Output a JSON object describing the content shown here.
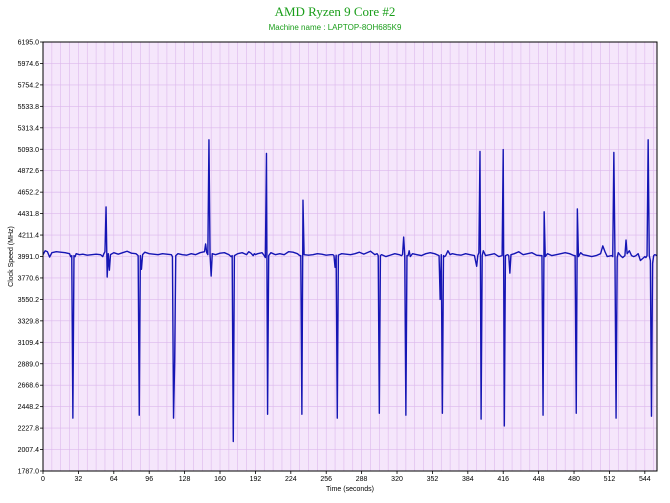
{
  "chart_data": {
    "type": "line",
    "title": "AMD Ryzen 9 Core #2",
    "subtitle": "Machine name : LAPTOP-8OH685K9",
    "xlabel": "Time (seconds)",
    "ylabel": "Clock Speed (MHz)",
    "xlim": [
      0,
      555
    ],
    "ylim": [
      1787.0,
      6195.0
    ],
    "x_ticks": [
      0,
      32,
      64,
      96,
      128,
      160,
      192,
      224,
      256,
      288,
      320,
      352,
      384,
      416,
      448,
      480,
      512,
      544
    ],
    "y_ticks": [
      "1787.0",
      "2007.4",
      "2227.8",
      "2448.2",
      "2668.6",
      "2889.0",
      "3109.4",
      "3329.8",
      "3550.2",
      "3770.6",
      "3991.0",
      "4211.4",
      "4431.8",
      "4652.2",
      "4872.6",
      "5093.0",
      "5313.4",
      "5533.8",
      "5754.2",
      "5974.6",
      "6195.0"
    ],
    "grid": true,
    "background": "#f5e6fb",
    "grid_color": "#dcb8ec",
    "line_color": "#1515b4",
    "baseline": 4005,
    "series": [
      {
        "points": [
          [
            0,
            4010
          ],
          [
            2,
            4050
          ],
          [
            4,
            4040
          ],
          [
            6,
            3985
          ],
          [
            8,
            4030
          ],
          [
            12,
            4040
          ],
          [
            16,
            4035
          ],
          [
            20,
            4030
          ],
          [
            24,
            4020
          ],
          [
            25,
            3990
          ],
          [
            26,
            4000
          ],
          [
            27,
            2330
          ],
          [
            28,
            4000
          ],
          [
            29,
            3990
          ],
          [
            30,
            4020
          ],
          [
            33,
            4010
          ],
          [
            36,
            4015
          ],
          [
            40,
            4005
          ],
          [
            44,
            4010
          ],
          [
            48,
            4015
          ],
          [
            52,
            4010
          ],
          [
            54,
            3990
          ],
          [
            55,
            4020
          ],
          [
            56,
            4040
          ],
          [
            57,
            4500
          ],
          [
            58,
            3780
          ],
          [
            59,
            4020
          ],
          [
            60,
            3850
          ],
          [
            61,
            4010
          ],
          [
            64,
            4030
          ],
          [
            68,
            4015
          ],
          [
            72,
            4030
          ],
          [
            76,
            4045
          ],
          [
            80,
            4025
          ],
          [
            84,
            4020
          ],
          [
            86,
            4000
          ],
          [
            87,
            2360
          ],
          [
            88,
            4000
          ],
          [
            89,
            3860
          ],
          [
            90,
            4010
          ],
          [
            92,
            4035
          ],
          [
            96,
            4020
          ],
          [
            100,
            4015
          ],
          [
            104,
            4010
          ],
          [
            108,
            4020
          ],
          [
            112,
            4015
          ],
          [
            116,
            4010
          ],
          [
            117,
            3990
          ],
          [
            118,
            2330
          ],
          [
            119,
            2900
          ],
          [
            120,
            4000
          ],
          [
            122,
            4020
          ],
          [
            126,
            4010
          ],
          [
            130,
            4005
          ],
          [
            134,
            4020
          ],
          [
            138,
            4010
          ],
          [
            142,
            4030
          ],
          [
            146,
            4040
          ],
          [
            147,
            4120
          ],
          [
            148,
            4030
          ],
          [
            149,
            4010
          ],
          [
            150,
            5190
          ],
          [
            151,
            4010
          ],
          [
            152,
            3790
          ],
          [
            153,
            4020
          ],
          [
            156,
            4010
          ],
          [
            160,
            4025
          ],
          [
            164,
            4030
          ],
          [
            168,
            4010
          ],
          [
            170,
            3990
          ],
          [
            171,
            4000
          ],
          [
            172,
            2090
          ],
          [
            173,
            4000
          ],
          [
            176,
            4020
          ],
          [
            180,
            4030
          ],
          [
            184,
            4010
          ],
          [
            186,
            4040
          ],
          [
            188,
            4025
          ],
          [
            190,
            4000
          ],
          [
            191,
            4020
          ],
          [
            192,
            4010
          ],
          [
            194,
            4020
          ],
          [
            198,
            4030
          ],
          [
            200,
            4000
          ],
          [
            201,
            3980
          ],
          [
            202,
            5050
          ],
          [
            203,
            2370
          ],
          [
            204,
            4000
          ],
          [
            206,
            4030
          ],
          [
            210,
            4010
          ],
          [
            214,
            4020
          ],
          [
            218,
            4010
          ],
          [
            222,
            4040
          ],
          [
            226,
            4035
          ],
          [
            230,
            4020
          ],
          [
            232,
            4000
          ],
          [
            233,
            4000
          ],
          [
            234,
            2370
          ],
          [
            235,
            4570
          ],
          [
            236,
            4010
          ],
          [
            240,
            4005
          ],
          [
            244,
            4010
          ],
          [
            248,
            4020
          ],
          [
            252,
            4015
          ],
          [
            256,
            4005
          ],
          [
            260,
            4010
          ],
          [
            262,
            4010
          ],
          [
            263,
            4000
          ],
          [
            264,
            3880
          ],
          [
            265,
            4005
          ],
          [
            266,
            2330
          ],
          [
            267,
            4005
          ],
          [
            268,
            4010
          ],
          [
            270,
            4020
          ],
          [
            274,
            4015
          ],
          [
            278,
            4010
          ],
          [
            282,
            4020
          ],
          [
            286,
            4035
          ],
          [
            290,
            4015
          ],
          [
            296,
            4045
          ],
          [
            300,
            4010
          ],
          [
            302,
            4020
          ],
          [
            303,
            4000
          ],
          [
            304,
            2380
          ],
          [
            305,
            4000
          ],
          [
            306,
            4010
          ],
          [
            310,
            3990
          ],
          [
            314,
            4005
          ],
          [
            318,
            4020
          ],
          [
            322,
            4010
          ],
          [
            324,
            4000
          ],
          [
            325,
            4010
          ],
          [
            326,
            4190
          ],
          [
            327,
            4000
          ],
          [
            328,
            2360
          ],
          [
            329,
            4000
          ],
          [
            330,
            4000
          ],
          [
            331,
            4050
          ],
          [
            332,
            3990
          ],
          [
            334,
            4020
          ],
          [
            338,
            4010
          ],
          [
            342,
            4000
          ],
          [
            346,
            4020
          ],
          [
            350,
            4030
          ],
          [
            354,
            4020
          ],
          [
            358,
            4000
          ],
          [
            359,
            3550
          ],
          [
            360,
            4010
          ],
          [
            361,
            2380
          ],
          [
            362,
            4000
          ],
          [
            363,
            3990
          ],
          [
            364,
            4000
          ],
          [
            366,
            4050
          ],
          [
            368,
            4010
          ],
          [
            370,
            4020
          ],
          [
            374,
            4010
          ],
          [
            378,
            4005
          ],
          [
            382,
            4020
          ],
          [
            386,
            4010
          ],
          [
            390,
            4000
          ],
          [
            392,
            3890
          ],
          [
            393,
            4000
          ],
          [
            394,
            4030
          ],
          [
            395,
            5070
          ],
          [
            396,
            2320
          ],
          [
            397,
            4000
          ],
          [
            398,
            4050
          ],
          [
            400,
            4000
          ],
          [
            404,
            4010
          ],
          [
            408,
            4020
          ],
          [
            412,
            3990
          ],
          [
            415,
            4000
          ],
          [
            416,
            5090
          ],
          [
            417,
            2250
          ],
          [
            418,
            4000
          ],
          [
            420,
            4010
          ],
          [
            421,
            4000
          ],
          [
            422,
            3820
          ],
          [
            423,
            4010
          ],
          [
            426,
            4020
          ],
          [
            430,
            4040
          ],
          [
            434,
            4010
          ],
          [
            438,
            4020
          ],
          [
            442,
            4030
          ],
          [
            446,
            4005
          ],
          [
            450,
            4000
          ],
          [
            451,
            4000
          ],
          [
            452,
            2360
          ],
          [
            453,
            4450
          ],
          [
            454,
            3990
          ],
          [
            456,
            4020
          ],
          [
            460,
            4000
          ],
          [
            464,
            4010
          ],
          [
            468,
            4020
          ],
          [
            472,
            4030
          ],
          [
            476,
            4020
          ],
          [
            480,
            4000
          ],
          [
            481,
            4000
          ],
          [
            482,
            2380
          ],
          [
            483,
            4480
          ],
          [
            484,
            3990
          ],
          [
            486,
            4030
          ],
          [
            488,
            4010
          ],
          [
            492,
            4000
          ],
          [
            496,
            3990
          ],
          [
            500,
            4000
          ],
          [
            504,
            4020
          ],
          [
            506,
            4100
          ],
          [
            508,
            4040
          ],
          [
            510,
            3990
          ],
          [
            512,
            3995
          ],
          [
            514,
            4000
          ],
          [
            515,
            3990
          ],
          [
            516,
            5060
          ],
          [
            517,
            4000
          ],
          [
            518,
            2330
          ],
          [
            519,
            3980
          ],
          [
            520,
            4030
          ],
          [
            522,
            4000
          ],
          [
            524,
            3980
          ],
          [
            526,
            4000
          ],
          [
            527,
            4160
          ],
          [
            528,
            4020
          ],
          [
            530,
            4050
          ],
          [
            532,
            4000
          ],
          [
            534,
            3990
          ],
          [
            536,
            4000
          ],
          [
            538,
            4020
          ],
          [
            540,
            3950
          ],
          [
            544,
            3990
          ],
          [
            545,
            3980
          ],
          [
            546,
            4000
          ],
          [
            547,
            5190
          ],
          [
            548,
            4000
          ],
          [
            549,
            3950
          ],
          [
            550,
            2350
          ],
          [
            551,
            3920
          ],
          [
            552,
            4000
          ],
          [
            553,
            4010
          ],
          [
            555,
            4000
          ]
        ]
      }
    ]
  }
}
